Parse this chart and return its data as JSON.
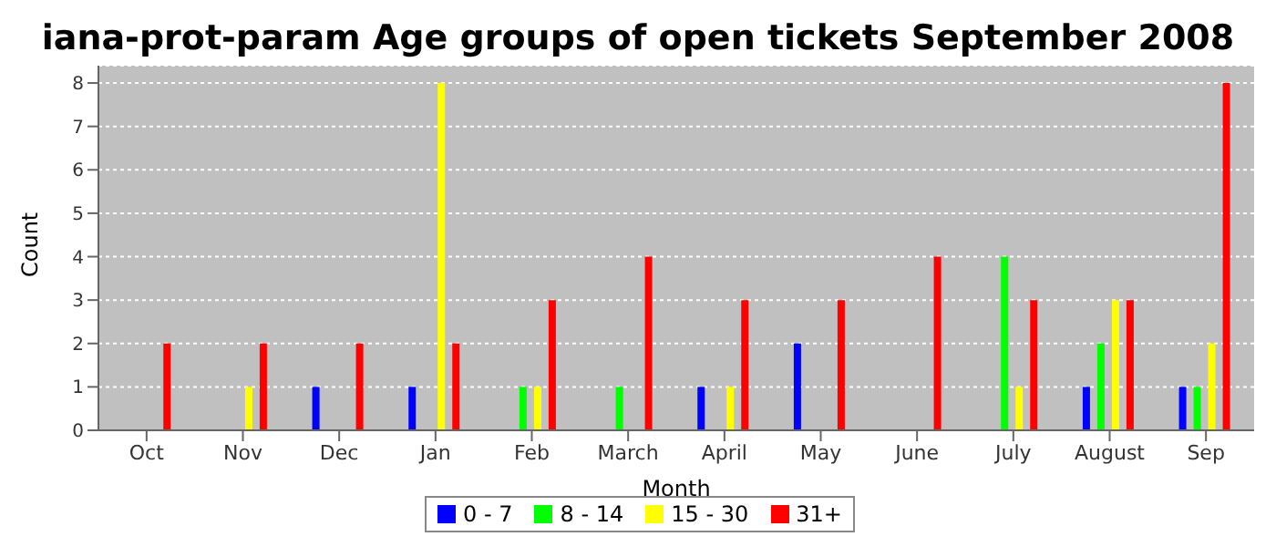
{
  "chart_data": {
    "type": "bar",
    "title": "iana-prot-param Age groups of open tickets September 2008",
    "xlabel": "Month",
    "ylabel": "Count",
    "categories": [
      "Oct",
      "Nov",
      "Dec",
      "Jan",
      "Feb",
      "March",
      "April",
      "May",
      "June",
      "July",
      "August",
      "Sep"
    ],
    "series": [
      {
        "name": "0 - 7",
        "color": "#0000ff",
        "values": [
          0,
          0,
          1,
          1,
          0,
          0,
          1,
          2,
          0,
          0,
          1,
          1
        ]
      },
      {
        "name": "8 - 14",
        "color": "#00ff00",
        "values": [
          0,
          0,
          0,
          0,
          1,
          1,
          0,
          0,
          0,
          4,
          2,
          1
        ]
      },
      {
        "name": "15 - 30",
        "color": "#ffff00",
        "values": [
          0,
          1,
          0,
          8,
          1,
          0,
          1,
          0,
          0,
          1,
          3,
          2
        ]
      },
      {
        "name": "31+",
        "color": "#ff0000",
        "values": [
          2,
          2,
          2,
          2,
          3,
          4,
          3,
          3,
          4,
          3,
          3,
          8
        ]
      }
    ],
    "ylim": [
      0,
      8.4
    ],
    "yticks": [
      0,
      1,
      2,
      3,
      4,
      5,
      6,
      7,
      8
    ],
    "grid": "y",
    "legend": "bottom"
  }
}
